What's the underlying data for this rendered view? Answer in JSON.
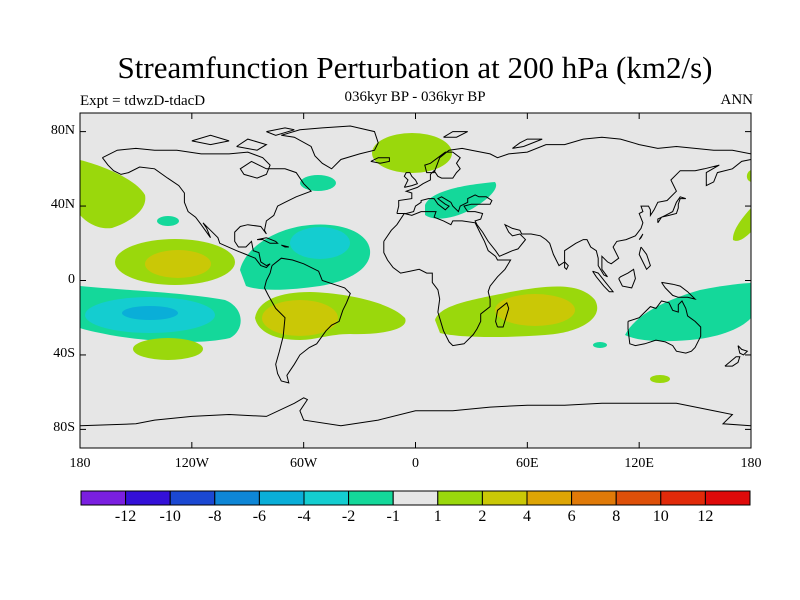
{
  "title": "Streamfunction Perturbation at 200 hPa (km2/s)",
  "left_string": "Expt = tdwzD-tdacD",
  "center_string": "036kyr BP - 036kyr BP",
  "right_string": "ANN",
  "lat_ticks": [
    {
      "value": 80,
      "label": "80N"
    },
    {
      "value": 40,
      "label": "40N"
    },
    {
      "value": 0,
      "label": "0"
    },
    {
      "value": -40,
      "label": "40S"
    },
    {
      "value": -80,
      "label": "80S"
    }
  ],
  "lon_ticks": [
    {
      "value": -180,
      "label": "180"
    },
    {
      "value": -120,
      "label": "120W"
    },
    {
      "value": -60,
      "label": "60W"
    },
    {
      "value": 0,
      "label": "0"
    },
    {
      "value": 60,
      "label": "60E"
    },
    {
      "value": 120,
      "label": "120E"
    },
    {
      "value": 180,
      "label": "180"
    }
  ],
  "colorbar": {
    "colors": [
      "#7a1fe0",
      "#3410d8",
      "#1b48d2",
      "#0e86d6",
      "#0aaed8",
      "#14cdd0",
      "#14d89a",
      "#e6e6e6",
      "#9ad80c",
      "#cac806",
      "#dea505",
      "#e07a08",
      "#de5009",
      "#e12a0a",
      "#df0a0a"
    ],
    "labels": [
      "-12",
      "-10",
      "-8",
      "-6",
      "-4",
      "-2",
      "-1",
      "1",
      "2",
      "4",
      "6",
      "8",
      "10",
      "12"
    ]
  },
  "colors": {
    "ocean_background": "#e6e6e6",
    "coast": "#000000"
  }
}
